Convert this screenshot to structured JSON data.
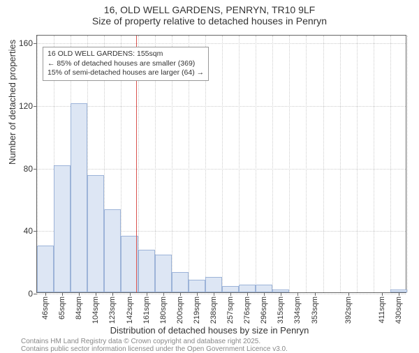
{
  "title": {
    "line1": "16, OLD WELL GARDENS, PENRYN, TR10 9LF",
    "line2": "Size of property relative to detached houses in Penryn"
  },
  "y_axis": {
    "label": "Number of detached properties",
    "min": 0,
    "max": 165,
    "ticks": [
      0,
      40,
      80,
      120,
      160
    ]
  },
  "x_axis": {
    "label": "Distribution of detached houses by size in Penryn",
    "tick_labels": [
      "46sqm",
      "65sqm",
      "84sqm",
      "104sqm",
      "123sqm",
      "142sqm",
      "161sqm",
      "180sqm",
      "200sqm",
      "219sqm",
      "238sqm",
      "257sqm",
      "276sqm",
      "296sqm",
      "315sqm",
      "334sqm",
      "353sqm",
      "392sqm",
      "411sqm",
      "430sqm"
    ]
  },
  "bars": {
    "values": [
      30,
      81,
      121,
      75,
      53,
      36,
      27,
      24,
      13,
      8,
      10,
      4,
      5,
      5,
      2,
      0,
      0,
      0,
      0,
      0,
      0,
      2
    ],
    "fill_color": "#dde6f4",
    "border_color": "#9cb3d8"
  },
  "marker": {
    "color": "#d9534f",
    "bar_index_after": 5.9
  },
  "annotation": {
    "line1": "16 OLD WELL GARDENS: 155sqm",
    "line2": "← 85% of detached houses are smaller (369)",
    "line3": "15% of semi-detached houses are larger (64) →"
  },
  "footer": {
    "line1": "Contains HM Land Registry data © Crown copyright and database right 2025.",
    "line2": "Contains public sector information licensed under the Open Government Licence v3.0."
  },
  "style": {
    "grid_color": "#cccccc",
    "axis_color": "#666666",
    "title_fontsize": 14,
    "label_fontsize": 13,
    "tick_fontsize": 12
  }
}
